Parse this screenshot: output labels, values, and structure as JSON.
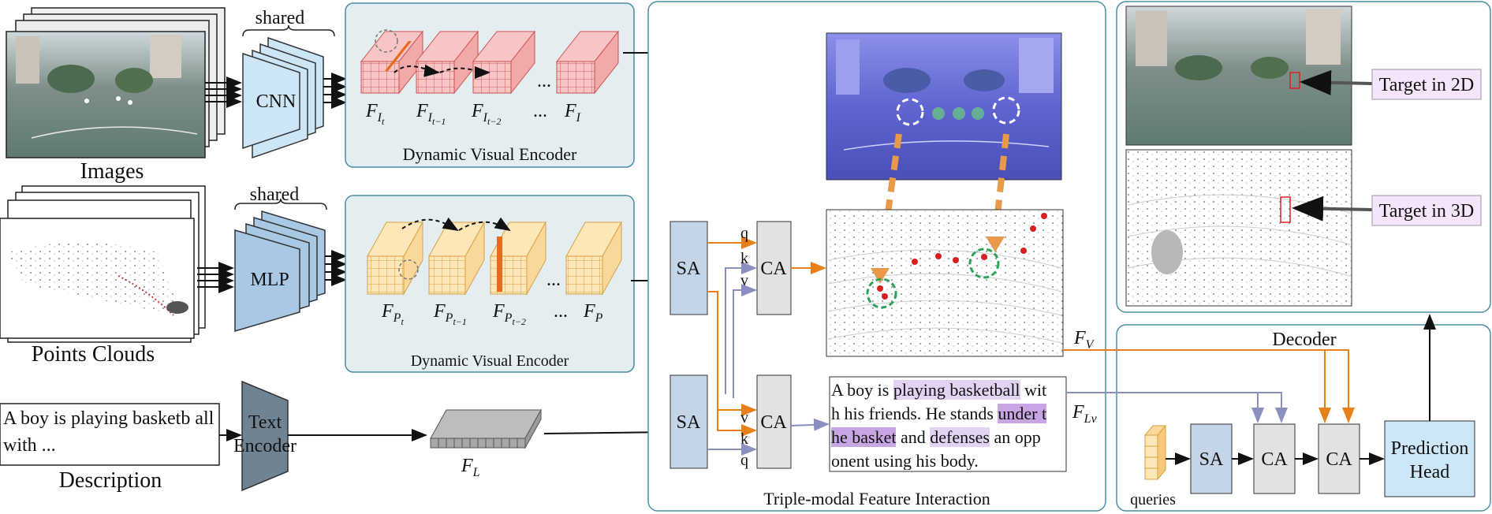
{
  "inputs": {
    "images_label": "Images",
    "points_label": "Points Clouds",
    "description_label": "Description",
    "description_text": "A boy is playing basketb all with ..."
  },
  "encoders": {
    "shared_top": "shared",
    "shared_mid": "shared",
    "cnn": "CNN",
    "mlp": "MLP",
    "text_encoder_line1": "Text",
    "text_encoder_line2": "Encoder"
  },
  "panels": {
    "dve_top": "Dynamic Visual Encoder",
    "dve_mid": "Dynamic Visual Encoder",
    "interaction": "Triple-modal Feature Interaction",
    "decoder": "Decoder"
  },
  "features": {
    "fi_t": "F",
    "fi_sub": "I",
    "fp": "F",
    "fp_sub": "P",
    "fl": "F",
    "fl_sub": "L",
    "fv": "F",
    "fv_sub": "V",
    "flv": "F",
    "flv_sub": "Lv",
    "ellipsis": "..."
  },
  "blocks": {
    "sa": "SA",
    "ca": "CA",
    "q": "q",
    "k": "k",
    "v": "v",
    "queries": "queries",
    "prediction_line1": "Prediction",
    "prediction_line2": "Head"
  },
  "text_panel": {
    "line1_a": "A boy is ",
    "line1_hl": "playing basketball",
    "line1_b": " wit",
    "line2_a": "h his friends. He stands ",
    "line2_hl": "under t",
    "line3_hl": "he basket",
    "line3_a": " and ",
    "line3_hl2": "defenses",
    "line3_b": " an opp",
    "line4": "onent using his body."
  },
  "targets": {
    "target_2d": "Target in 2D",
    "target_3d": "Target in 3D"
  },
  "colors": {
    "panel_fill": "#e4eef0",
    "panel_stroke": "#4a8ea6",
    "red_cube": "#f4b8b8",
    "red_edge": "#d05050",
    "yellow_cube": "#fbe2b0",
    "yellow_edge": "#d9a040",
    "orange": "#e8801a",
    "purple": "#8a8fc0",
    "cnn_fill": "#cde6f5",
    "mlp_fill": "#a8c8e4",
    "sa_fill": "#c4d5e8",
    "ca_fill": "#e2e2e2",
    "head_fill": "#cde6f8"
  }
}
